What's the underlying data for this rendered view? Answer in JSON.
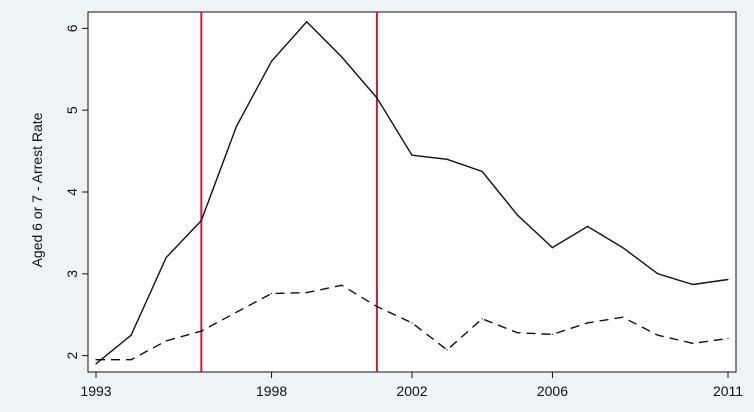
{
  "chart_data": {
    "type": "line",
    "title": "",
    "xlabel": "",
    "ylabel": "Aged 6 or 7 - Arrest Rate",
    "xlim": [
      1993,
      2011
    ],
    "ylim": [
      1.8,
      6.2
    ],
    "x_ticks": [
      "1993",
      "1998",
      "2002",
      "2006",
      "2011"
    ],
    "y_ticks": [
      "2",
      "3",
      "4",
      "5",
      "6"
    ],
    "grid": false,
    "legend": "none",
    "vertical_reference_lines": [
      1996,
      2001
    ],
    "colors": {
      "reference_line": "#c41e3a",
      "series": "#111111",
      "background": "#eef3f5",
      "plot_background": "#ffffff"
    },
    "x": [
      1993,
      1994,
      1995,
      1996,
      1997,
      1998,
      1999,
      2000,
      2001,
      2002,
      2003,
      2004,
      2005,
      2006,
      2007,
      2008,
      2009,
      2010,
      2011
    ],
    "series": [
      {
        "style": "solid",
        "values": [
          1.9,
          2.25,
          3.2,
          3.65,
          4.8,
          5.6,
          6.08,
          5.65,
          5.15,
          4.45,
          4.4,
          4.25,
          3.72,
          3.32,
          3.58,
          3.32,
          3.0,
          2.87,
          2.93
        ]
      },
      {
        "style": "dashed",
        "values": [
          1.95,
          1.95,
          2.18,
          2.3,
          2.53,
          2.76,
          2.77,
          2.86,
          2.6,
          2.4,
          2.07,
          2.45,
          2.28,
          2.26,
          2.4,
          2.47,
          2.25,
          2.15,
          2.21
        ]
      }
    ]
  }
}
